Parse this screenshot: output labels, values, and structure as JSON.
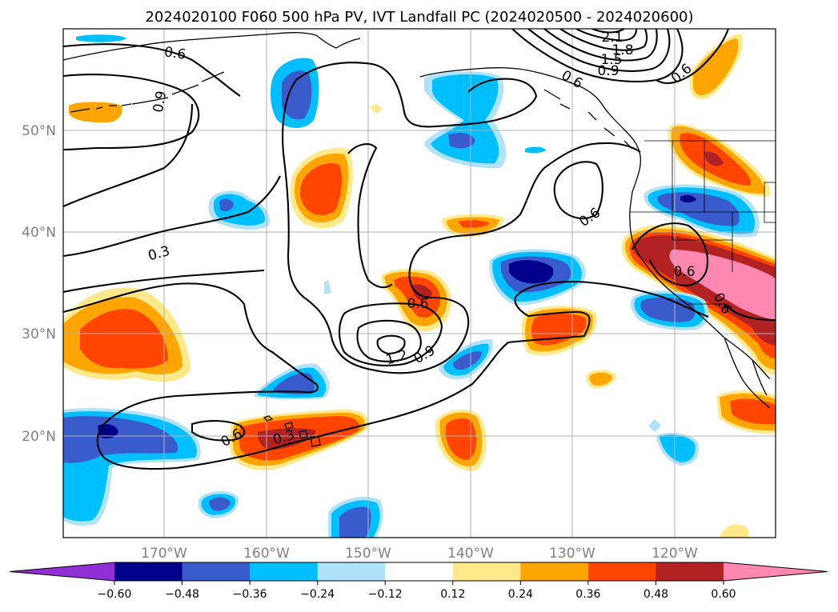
{
  "title": "2024020100 F060 500 hPa PV, IVT Landfall PC (2024020500 - 2024020600)",
  "map": {
    "lon_labels": [
      "170°W",
      "160°W",
      "150°W",
      "140°W",
      "130°W",
      "120°W"
    ],
    "lat_labels": [
      "50°N",
      "40°N",
      "30°N",
      "20°N"
    ],
    "grid": true,
    "contour_labels": [
      "0.6",
      "0.9",
      "0.3",
      "0.6",
      "0.6",
      "0.6",
      "0.9",
      "1.2",
      "0.6",
      "0.3",
      "0.6",
      "2.1",
      "1.8",
      "1.5",
      "0.9",
      "0.6",
      "0.6"
    ]
  },
  "colorbar": {
    "ticks": [
      "−0.60",
      "−0.48",
      "−0.36",
      "−0.24",
      "−0.12",
      "0.12",
      "0.24",
      "0.36",
      "0.48",
      "0.60"
    ],
    "colors": [
      "#8f2fd4",
      "#00008b",
      "#3a5bcc",
      "#00bfff",
      "#b0e2fa",
      "#ffffff",
      "#ffe98a",
      "#ffa500",
      "#ff4500",
      "#b22222",
      "#ff88b3"
    ]
  }
}
